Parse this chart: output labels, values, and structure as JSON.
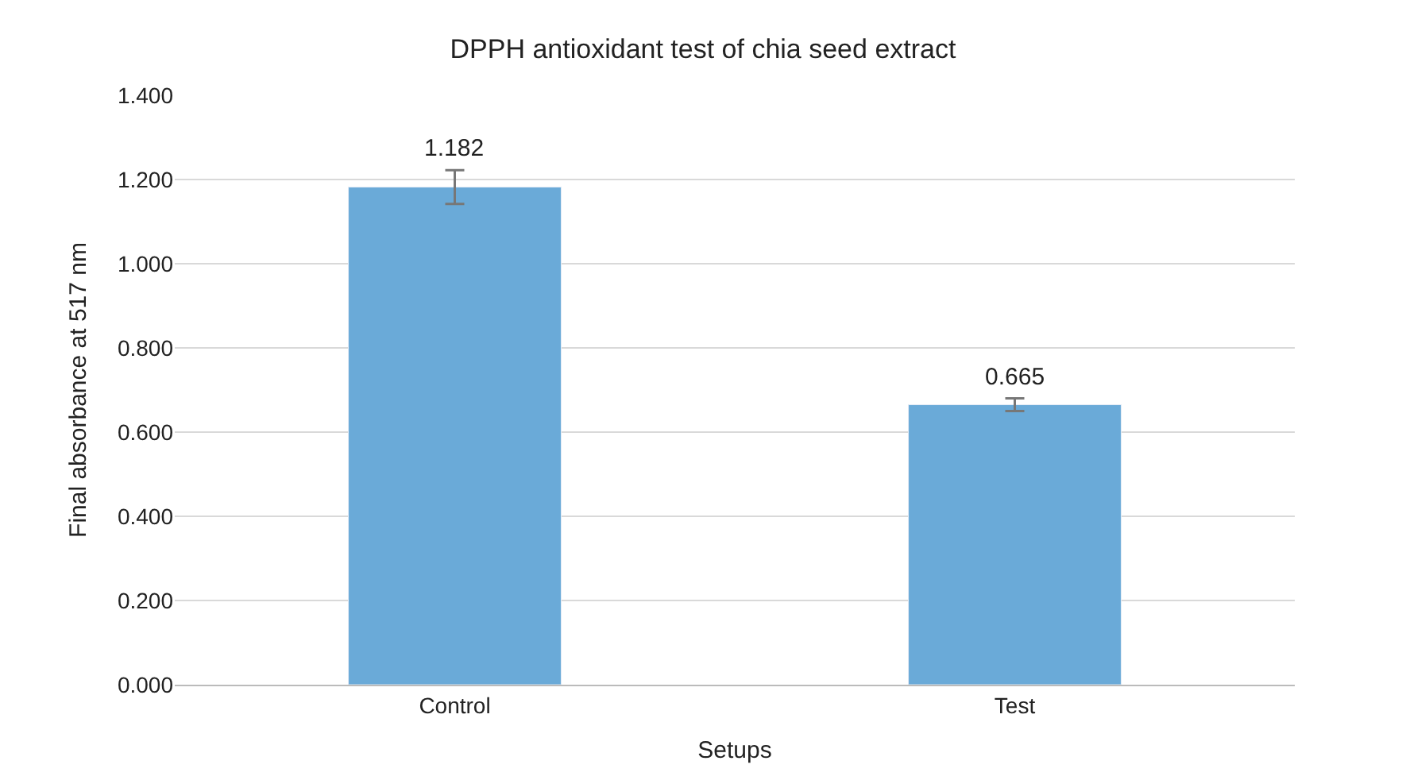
{
  "chart_data": {
    "type": "bar",
    "title": "DPPH antioxidant test of chia seed extract",
    "xlabel": "Setups",
    "ylabel": "Final absorbance at 517 nm",
    "categories": [
      "Control",
      "Test"
    ],
    "values": [
      1.182,
      0.665
    ],
    "color": "#6aaad8",
    "errors": [
      0.04,
      0.015
    ],
    "data_labels": true,
    "ylim": [
      0,
      1.4
    ],
    "yticks": [
      {
        "value": 0,
        "label": "0.000"
      },
      {
        "value": 0.2,
        "label": "0.200"
      },
      {
        "value": 0.4,
        "label": "0.400"
      },
      {
        "value": 0.6,
        "label": "0.600"
      },
      {
        "value": 0.8,
        "label": "0.800"
      },
      {
        "value": 1.0,
        "label": "1.000"
      },
      {
        "value": 1.2,
        "label": "1.200"
      },
      {
        "value": 1.4,
        "label": "1.400"
      }
    ],
    "grid": "y",
    "legend": false
  }
}
